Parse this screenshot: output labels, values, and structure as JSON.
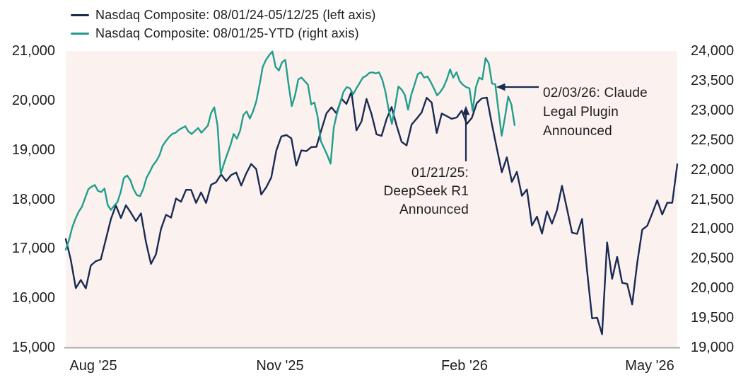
{
  "legend": {
    "items": [
      {
        "label": "Nasdaq Composite: 08/01/24-05/12/25 (left axis)",
        "color": "#1a2a52"
      },
      {
        "label": "Nasdaq Composite: 08/01/25-YTD (right axis)",
        "color": "#219e8b"
      }
    ]
  },
  "annotations": [
    {
      "id": "deepseek",
      "lines": [
        "01/21/25:",
        "DeepSeek R1",
        "Announced"
      ],
      "arrow_direction": "up",
      "points_to": "navy series (left axis), late January 2025"
    },
    {
      "id": "claude",
      "lines": [
        "02/03/26: Claude",
        "Legal Plugin",
        "Announced"
      ],
      "arrow_direction": "left",
      "points_to": "teal series (right axis), early February 2026"
    }
  ],
  "colors": {
    "navy_series": "#1a2a52",
    "teal_series": "#219e8b",
    "plot_background": "#fbf2f0",
    "axis_line": "#9c9c9c",
    "text": "#1d1d1d",
    "arrow": "#1a2a52"
  },
  "chart_data": {
    "type": "line",
    "title": "",
    "grid": false,
    "legend_position": "top-left",
    "plot_background": "#fbf2f0",
    "x_axis": {
      "tick_labels": [
        "Aug '25",
        "Nov '25",
        "Feb '26",
        "May '26"
      ]
    },
    "left_axis": {
      "min": 15000,
      "max": 21000,
      "step": 1000,
      "tick_labels": [
        "21,000",
        "20,000",
        "19,000",
        "18,000",
        "17,000",
        "16,000",
        "15,000"
      ]
    },
    "right_axis": {
      "min": 19000,
      "max": 24000,
      "step": 500,
      "tick_labels": [
        "24,000",
        "23,500",
        "23,000",
        "22,500",
        "22,000",
        "21,500",
        "21,000",
        "20,500",
        "20,000",
        "19,500",
        "19,000"
      ]
    },
    "series": [
      {
        "name": "Nasdaq Composite: 08/01/24-05/12/25",
        "axis": "left",
        "color": "#1a2a52",
        "x_start_fraction": 0,
        "x_end_fraction": 1,
        "values": [
          17194,
          16776,
          16200,
          16366,
          16196,
          16660,
          16745,
          16781,
          17187,
          17594,
          17876,
          17619,
          17877,
          17725,
          17556,
          17714,
          17136,
          16691,
          16884,
          17396,
          17684,
          17628,
          18014,
          17948,
          18190,
          18189,
          17925,
          18138,
          17924,
          18292,
          18343,
          18502,
          18368,
          18490,
          18540,
          18277,
          18519,
          18713,
          18608,
          18095,
          18240,
          18440,
          18983,
          19269,
          19299,
          19231,
          18680,
          18988,
          18972,
          19055,
          19060,
          19404,
          19735,
          19860,
          19737,
          20034,
          19927,
          20174,
          19393,
          19573,
          20031,
          19722,
          19311,
          19281,
          19622,
          19864,
          19489,
          19162,
          19088,
          19511,
          19630,
          19756,
          20053,
          19954,
          19341,
          19733,
          19681,
          19627,
          19654,
          19792,
          19523,
          19644,
          19945,
          20041,
          20056,
          19524,
          19026,
          18545,
          18847,
          18350,
          18553,
          18069,
          18196,
          17468,
          17648,
          17303,
          17754,
          17504,
          17784,
          18272,
          17804,
          17323,
          17299,
          17601,
          16551,
          15588,
          15603,
          15268,
          17125,
          16387,
          16831,
          16307,
          16286,
          15871,
          16708,
          17383,
          17461,
          17711,
          17978,
          17690,
          17928,
          17929,
          18708
        ]
      },
      {
        "name": "Nasdaq Composite: 08/01/25-YTD",
        "axis": "right",
        "color": "#219e8b",
        "x_start_fraction": 0,
        "x_end_fraction": 0.734,
        "values": [
          20650,
          20810,
          21020,
          21170,
          21290,
          21370,
          21520,
          21670,
          21710,
          21740,
          21640,
          21620,
          21680,
          21400,
          21320,
          21390,
          21450,
          21620,
          21860,
          21900,
          21820,
          21670,
          21570,
          21550,
          21670,
          21860,
          21960,
          22070,
          22140,
          22240,
          22400,
          22480,
          22550,
          22600,
          22620,
          22670,
          22700,
          22730,
          22640,
          22600,
          22650,
          22700,
          22620,
          22680,
          22740,
          22950,
          23050,
          22740,
          21920,
          22100,
          22260,
          22410,
          22600,
          22520,
          22660,
          22920,
          22980,
          22860,
          22980,
          23150,
          23430,
          23730,
          23850,
          23930,
          23990,
          23730,
          23670,
          23810,
          23850,
          23430,
          23070,
          23250,
          23520,
          23550,
          23490,
          23430,
          23100,
          23130,
          22890,
          22480,
          22360,
          22240,
          22100,
          22710,
          22950,
          23130,
          23310,
          23390,
          23370,
          23270,
          23370,
          23460,
          23550,
          23580,
          23630,
          23640,
          23620,
          23640,
          23520,
          23310,
          23010,
          22770,
          23070,
          23400,
          23350,
          23260,
          23010,
          23260,
          23430,
          23610,
          23640,
          23550,
          23570,
          23480,
          23370,
          23250,
          23310,
          23390,
          23520,
          23690,
          23550,
          23640,
          23490,
          23430,
          23390,
          23370,
          22990,
          23390,
          23550,
          23520,
          23880,
          23790,
          23450,
          23440,
          22990,
          22570,
          22880,
          23230,
          23100,
          22750
        ]
      }
    ]
  }
}
